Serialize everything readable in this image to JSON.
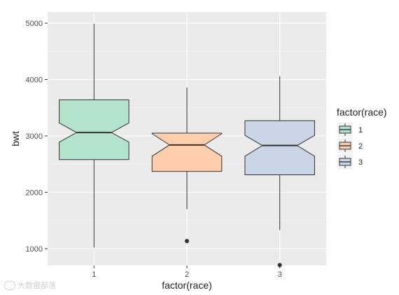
{
  "chart_data": {
    "type": "box",
    "notched": true,
    "xlabel": "factor(race)",
    "ylabel": "bwt",
    "ylim": [
      700,
      5200
    ],
    "y_ticks": [
      1000,
      2000,
      3000,
      4000,
      5000
    ],
    "categories": [
      "1",
      "2",
      "3"
    ],
    "grid": true,
    "legend": {
      "title": "factor(race)",
      "placement": "right",
      "entries": [
        "1",
        "2",
        "3"
      ]
    },
    "series": [
      {
        "category": "1",
        "min": 1020,
        "q1": 2580,
        "median": 3060,
        "q3": 3640,
        "max": 4990,
        "notch_low": 2890,
        "notch_high": 3230,
        "outliers": [],
        "color": "#b3e2cd"
      },
      {
        "category": "2",
        "min": 1700,
        "q1": 2370,
        "median": 2840,
        "q3": 3050,
        "max": 3860,
        "notch_low": 2640,
        "notch_high": 3040,
        "outliers": [
          1135
        ],
        "color": "#fdcdac"
      },
      {
        "category": "3",
        "min": 1330,
        "q1": 2310,
        "median": 2830,
        "q3": 3270,
        "max": 4060,
        "notch_low": 2640,
        "notch_high": 3010,
        "outliers": [
          710
        ],
        "color": "#cbd5e8"
      }
    ]
  },
  "watermark": {
    "text": "大数据部落"
  }
}
